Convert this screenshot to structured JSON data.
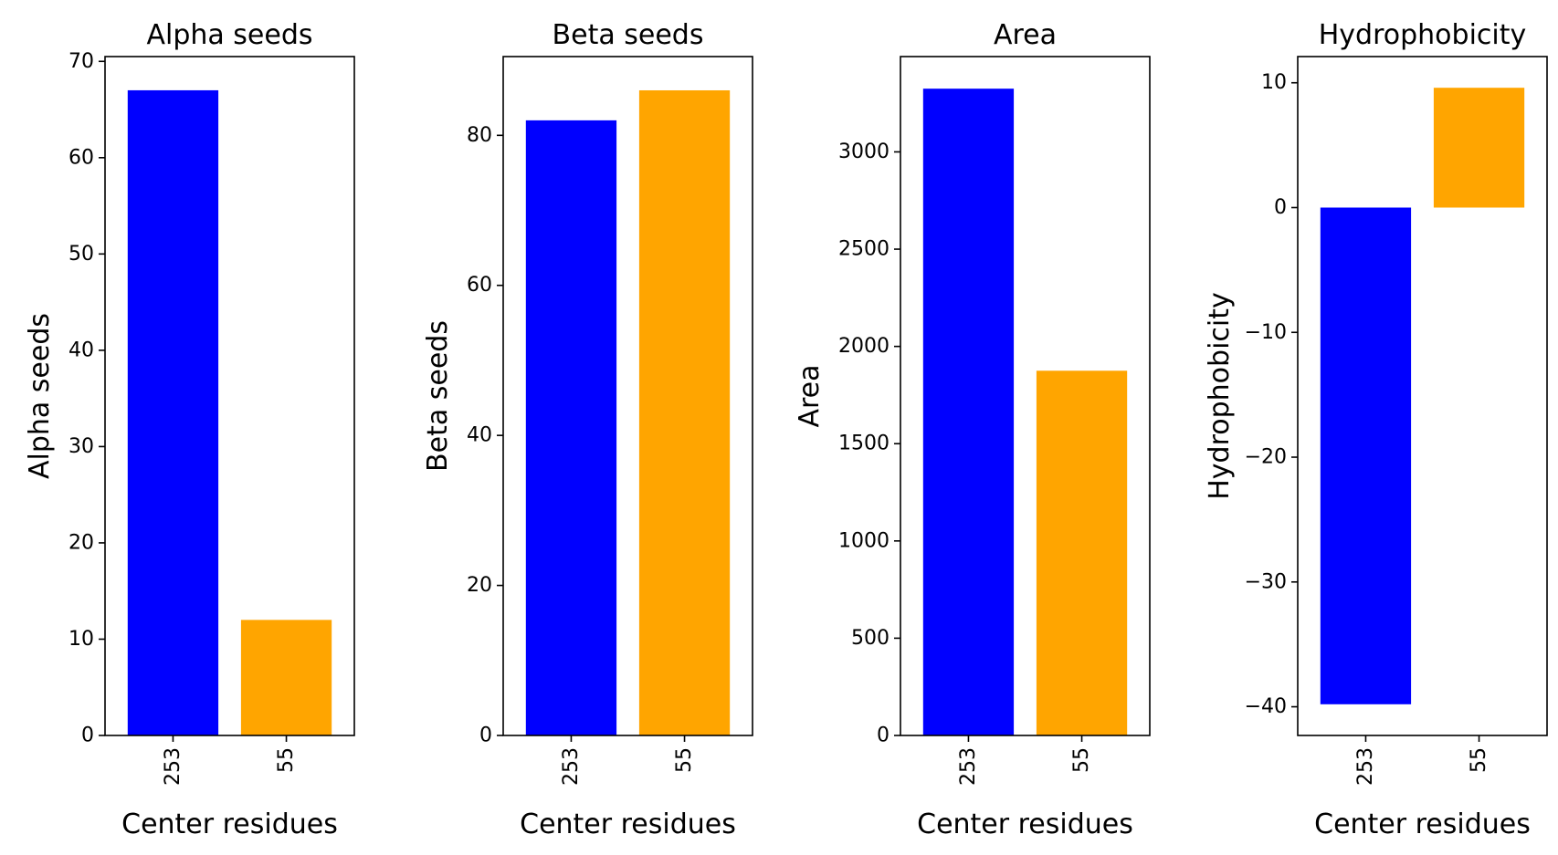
{
  "chart_data": [
    {
      "type": "bar",
      "title": "Alpha seeds",
      "xlabel": "Center residues",
      "ylabel": "Alpha seeds",
      "categories": [
        "253",
        "55"
      ],
      "values": [
        67,
        12
      ],
      "colors": [
        "#0000ff",
        "#ffa500"
      ],
      "ylim": [
        0,
        70.5
      ],
      "yticks": [
        0,
        10,
        20,
        30,
        40,
        50,
        60,
        70
      ],
      "ytick_labels": [
        "0",
        "10",
        "20",
        "30",
        "40",
        "50",
        "60",
        "70"
      ],
      "grid": false
    },
    {
      "type": "bar",
      "title": "Beta seeds",
      "xlabel": "Center residues",
      "ylabel": "Beta seeds",
      "categories": [
        "253",
        "55"
      ],
      "values": [
        82,
        86
      ],
      "colors": [
        "#0000ff",
        "#ffa500"
      ],
      "ylim": [
        0,
        90.5
      ],
      "yticks": [
        0,
        20,
        40,
        60,
        80
      ],
      "ytick_labels": [
        "0",
        "20",
        "40",
        "60",
        "80"
      ],
      "grid": false
    },
    {
      "type": "bar",
      "title": "Area",
      "xlabel": "Center residues",
      "ylabel": "Area",
      "categories": [
        "253",
        "55"
      ],
      "values": [
        3325,
        1875
      ],
      "colors": [
        "#0000ff",
        "#ffa500"
      ],
      "ylim": [
        0,
        3490
      ],
      "yticks": [
        0,
        500,
        1000,
        1500,
        2000,
        2500,
        3000
      ],
      "ytick_labels": [
        "0",
        "500",
        "1000",
        "1500",
        "2000",
        "2500",
        "3000"
      ],
      "grid": false
    },
    {
      "type": "bar",
      "title": "Hydrophobicity",
      "xlabel": "Center residues",
      "ylabel": "Hydrophobicity",
      "categories": [
        "253",
        "55"
      ],
      "values": [
        -39.8,
        9.6
      ],
      "colors": [
        "#0000ff",
        "#ffa500"
      ],
      "ylim": [
        -42.3,
        12.1
      ],
      "yticks": [
        -40,
        -30,
        -20,
        -10,
        0,
        10
      ],
      "ytick_labels": [
        "−40",
        "−30",
        "−20",
        "−10",
        "0",
        "10"
      ],
      "grid": false
    }
  ]
}
